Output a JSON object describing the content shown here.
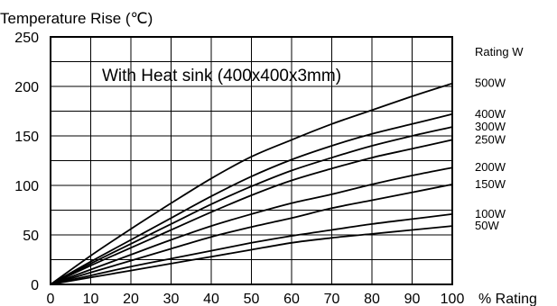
{
  "chart_data": {
    "type": "line",
    "ylabel": "Temperature Rise (℃)",
    "xlabel": "% Rating",
    "annotation": "With Heat sink (400x400x3mm)",
    "legend_title": "Rating W",
    "xlim": [
      0,
      100
    ],
    "ylim": [
      0,
      250
    ],
    "x_ticks": [
      0,
      10,
      20,
      30,
      40,
      50,
      60,
      70,
      80,
      90,
      100
    ],
    "y_ticks": [
      0,
      50,
      100,
      150,
      200,
      250
    ],
    "x_tick_labels": [
      "0",
      "10",
      "20",
      "30",
      "40",
      "50",
      "60",
      "70",
      "80",
      "90",
      "100"
    ],
    "y_tick_labels": [
      "0",
      "50",
      "100",
      "150",
      "200",
      "250"
    ],
    "grid": true,
    "x": [
      0,
      10,
      20,
      30,
      40,
      50,
      60,
      70,
      80,
      90,
      100
    ],
    "series": [
      {
        "name": "500W",
        "values": [
          0,
          29,
          56,
          82,
          107,
          129,
          146,
          162,
          176,
          190,
          203
        ]
      },
      {
        "name": "400W",
        "values": [
          0,
          23,
          45,
          67,
          89,
          109,
          126,
          140,
          152,
          162,
          172
        ]
      },
      {
        "name": "300W",
        "values": [
          0,
          21,
          41,
          61,
          81,
          99,
          115,
          128,
          140,
          150,
          159
        ]
      },
      {
        "name": "250W",
        "values": [
          0,
          19,
          37,
          55,
          73,
          90,
          105,
          117,
          128,
          137,
          146
        ]
      },
      {
        "name": "200W",
        "values": [
          0,
          15,
          30,
          45,
          59,
          71,
          82,
          91,
          101,
          110,
          118
        ]
      },
      {
        "name": "150W",
        "values": [
          0,
          12,
          24,
          36,
          48,
          58,
          67,
          77,
          85,
          93,
          101
        ]
      },
      {
        "name": "100W",
        "values": [
          0,
          9,
          18,
          26,
          34,
          42,
          49,
          55,
          61,
          66,
          71
        ]
      },
      {
        "name": "50W",
        "values": [
          0,
          7,
          14,
          21,
          28,
          35,
          42,
          47,
          51,
          55,
          59
        ]
      }
    ]
  }
}
